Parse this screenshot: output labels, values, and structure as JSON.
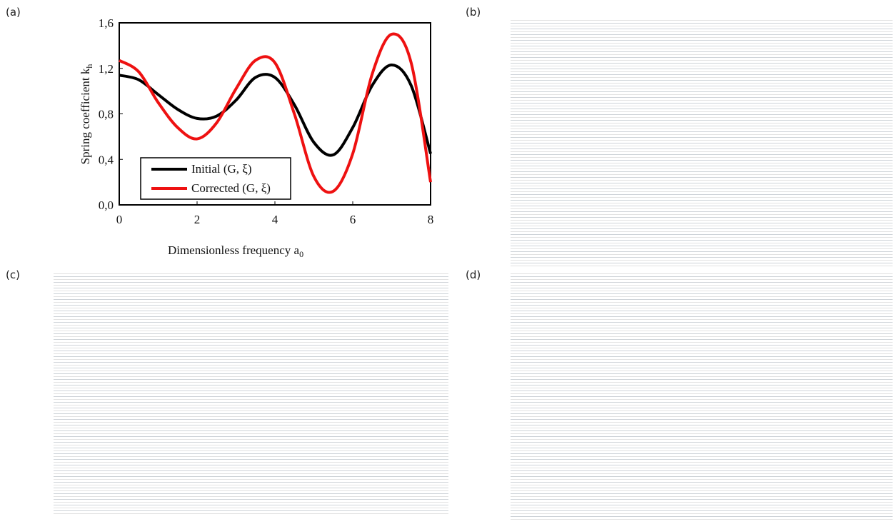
{
  "panels": [
    "(a)",
    "(b)",
    "(c)",
    "(d)"
  ],
  "chart_data": {
    "type": "line",
    "ylabel": "Spring coefficient k",
    "ylabel_sub": "h",
    "xlabel": "Dimensionless frequency a",
    "xlabel_sub": "0",
    "x": [
      0,
      0.5,
      1,
      1.5,
      2,
      2.5,
      3,
      3.5,
      4,
      4.5,
      5,
      5.5,
      6,
      6.5,
      7,
      7.5,
      8
    ],
    "series": [
      {
        "name": "Initial (G, ξ)",
        "color": "#000000",
        "values": [
          1.14,
          1.1,
          0.97,
          0.84,
          0.76,
          0.78,
          0.92,
          1.12,
          1.12,
          0.88,
          0.55,
          0.44,
          0.68,
          1.05,
          1.23,
          1.05,
          0.45
        ]
      },
      {
        "name": "Corrected (G, ξ)",
        "color": "#ee1111",
        "values": [
          1.27,
          1.17,
          0.9,
          0.68,
          0.58,
          0.72,
          1.02,
          1.27,
          1.25,
          0.8,
          0.25,
          0.12,
          0.45,
          1.15,
          1.5,
          1.25,
          0.2
        ]
      }
    ],
    "xlim": [
      0,
      8
    ],
    "xticks": [
      0,
      2,
      4,
      6,
      8
    ],
    "ylim": [
      0,
      1.6
    ],
    "yticks": [
      {
        "value": 0,
        "label": "0,0"
      },
      {
        "value": 0.4,
        "label": "0,4"
      },
      {
        "value": 0.8,
        "label": "0,8"
      },
      {
        "value": 1.2,
        "label": "1,2"
      },
      {
        "value": 1.6,
        "label": "1,6"
      }
    ]
  }
}
